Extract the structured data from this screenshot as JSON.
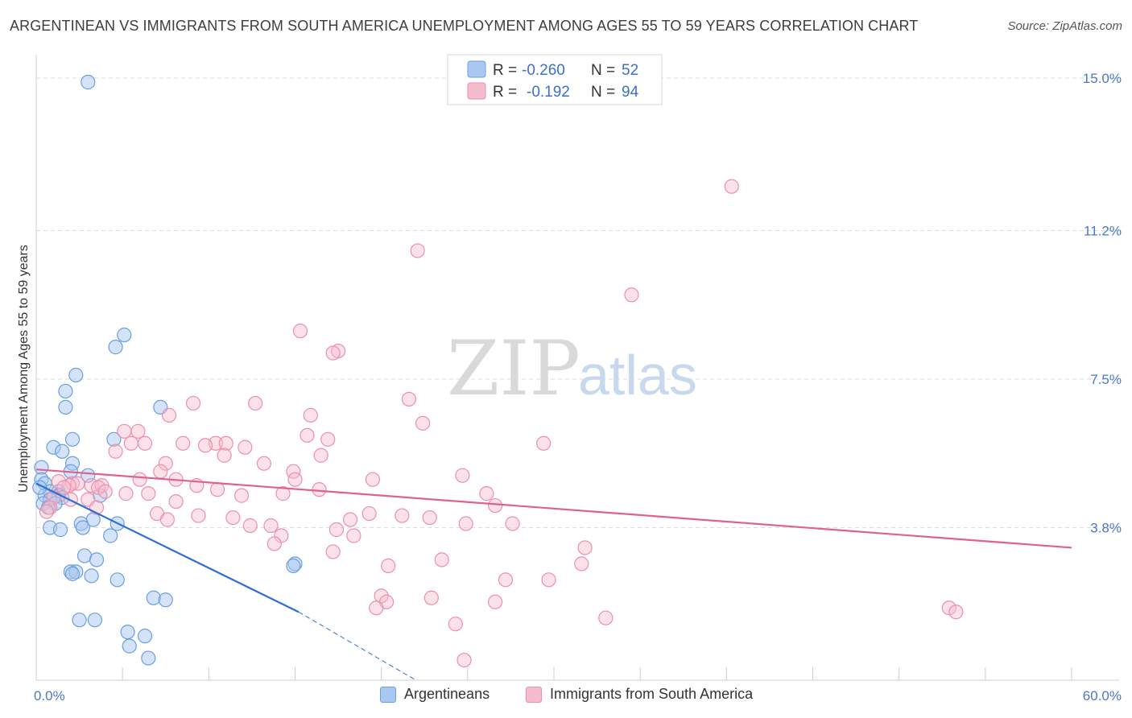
{
  "title": "ARGENTINEAN VS IMMIGRANTS FROM SOUTH AMERICA UNEMPLOYMENT AMONG AGES 55 TO 59 YEARS CORRELATION CHART",
  "source": "Source: ZipAtlas.com",
  "watermark": {
    "zip": "ZIP",
    "atlas": "atlas"
  },
  "colors": {
    "blue_fill": "#a9c7f0",
    "blue_stroke": "#6a9fe0",
    "blue_line": "#2d6fd2",
    "pink_fill": "#f6bccd",
    "pink_stroke": "#ec8fae",
    "pink_line": "#e0628c",
    "tick_text": "#4a78c9",
    "grid": "#dcdcdc"
  },
  "legend": {
    "rows": [
      {
        "r_label": "R =",
        "r_value": "-0.260",
        "n_label": "N =",
        "n_value": "52"
      },
      {
        "r_label": "R =",
        "r_value": "-0.192",
        "n_label": "N =",
        "n_value": "94"
      }
    ]
  },
  "bottom_legend": {
    "series1": "Argentineans",
    "series2": "Immigrants from South America"
  },
  "chart_data": {
    "type": "scatter",
    "title": "ARGENTINEAN VS IMMIGRANTS FROM SOUTH AMERICA UNEMPLOYMENT AMONG AGES 55 TO 59 YEARS CORRELATION CHART",
    "xlabel": "",
    "ylabel": "Unemployment Among Ages 55 to 59 years",
    "xlim": [
      0,
      60
    ],
    "ylim": [
      0,
      15.5
    ],
    "x_tick_labels": [
      "0.0%",
      "60.0%"
    ],
    "y_ticks": [
      3.8,
      7.5,
      11.2,
      15.0
    ],
    "y_tick_labels": [
      "3.8%",
      "7.5%",
      "11.2%",
      "15.0%"
    ],
    "grid": true,
    "series": [
      {
        "name": "Argentineans",
        "r": -0.26,
        "n": 52,
        "trend": {
          "x0": 0,
          "y0": 4.9,
          "x1": 15.2,
          "y1": 1.7,
          "dash_to_x": 22,
          "dash_to_y": 0.0
        },
        "points": [
          [
            3.0,
            14.9
          ],
          [
            5.1,
            8.6
          ],
          [
            4.6,
            8.3
          ],
          [
            2.3,
            7.6
          ],
          [
            1.7,
            7.2
          ],
          [
            1.7,
            6.8
          ],
          [
            7.2,
            6.8
          ],
          [
            2.1,
            6.0
          ],
          [
            4.5,
            6.0
          ],
          [
            1.0,
            5.8
          ],
          [
            1.5,
            5.7
          ],
          [
            2.1,
            5.4
          ],
          [
            0.3,
            5.3
          ],
          [
            2.0,
            5.2
          ],
          [
            3.0,
            5.1
          ],
          [
            0.3,
            5.0
          ],
          [
            0.5,
            4.9
          ],
          [
            0.8,
            4.7
          ],
          [
            1.3,
            4.7
          ],
          [
            0.5,
            4.6
          ],
          [
            1.3,
            4.6
          ],
          [
            1.5,
            4.55
          ],
          [
            0.8,
            4.5
          ],
          [
            3.7,
            4.6
          ],
          [
            1.1,
            4.4
          ],
          [
            0.4,
            4.4
          ],
          [
            0.7,
            4.3
          ],
          [
            3.3,
            4.0
          ],
          [
            2.6,
            3.9
          ],
          [
            4.7,
            3.9
          ],
          [
            0.8,
            3.8
          ],
          [
            2.7,
            3.8
          ],
          [
            1.4,
            3.75
          ],
          [
            4.3,
            3.6
          ],
          [
            2.8,
            3.1
          ],
          [
            3.5,
            3.0
          ],
          [
            2.0,
            2.7
          ],
          [
            2.3,
            2.7
          ],
          [
            2.1,
            2.65
          ],
          [
            3.2,
            2.6
          ],
          [
            15.0,
            2.9
          ],
          [
            14.9,
            2.85
          ],
          [
            4.7,
            2.5
          ],
          [
            6.8,
            2.05
          ],
          [
            7.5,
            2.0
          ],
          [
            2.5,
            1.5
          ],
          [
            3.4,
            1.5
          ],
          [
            5.3,
            1.2
          ],
          [
            6.3,
            1.1
          ],
          [
            5.4,
            0.85
          ],
          [
            6.5,
            0.55
          ],
          [
            0.2,
            4.8
          ]
        ]
      },
      {
        "name": "Immigrants from South America",
        "r": -0.192,
        "n": 94,
        "trend": {
          "x0": 0,
          "y0": 5.25,
          "x1": 60,
          "y1": 3.3
        },
        "points": [
          [
            40.3,
            12.3
          ],
          [
            22.1,
            10.7
          ],
          [
            34.5,
            9.6
          ],
          [
            15.3,
            8.7
          ],
          [
            17.5,
            8.2
          ],
          [
            17.2,
            8.15
          ],
          [
            21.6,
            7.0
          ],
          [
            9.1,
            6.9
          ],
          [
            12.7,
            6.9
          ],
          [
            15.9,
            6.6
          ],
          [
            7.7,
            6.6
          ],
          [
            22.4,
            6.4
          ],
          [
            5.1,
            6.2
          ],
          [
            5.9,
            6.2
          ],
          [
            15.7,
            6.1
          ],
          [
            16.9,
            6.0
          ],
          [
            6.3,
            5.9
          ],
          [
            5.5,
            5.9
          ],
          [
            8.5,
            5.9
          ],
          [
            10.4,
            5.9
          ],
          [
            11.0,
            5.9
          ],
          [
            9.8,
            5.85
          ],
          [
            12.1,
            5.8
          ],
          [
            4.6,
            5.7
          ],
          [
            29.4,
            5.9
          ],
          [
            10.9,
            5.6
          ],
          [
            16.5,
            5.6
          ],
          [
            7.5,
            5.4
          ],
          [
            13.2,
            5.4
          ],
          [
            14.9,
            5.2
          ],
          [
            7.2,
            5.2
          ],
          [
            24.7,
            5.1
          ],
          [
            6.0,
            5.0
          ],
          [
            8.1,
            5.0
          ],
          [
            15.0,
            5.0
          ],
          [
            19.5,
            5.0
          ],
          [
            1.3,
            4.95
          ],
          [
            2.1,
            4.9
          ],
          [
            2.4,
            4.9
          ],
          [
            1.9,
            4.85
          ],
          [
            3.2,
            4.85
          ],
          [
            3.8,
            4.85
          ],
          [
            9.3,
            4.85
          ],
          [
            1.6,
            4.8
          ],
          [
            3.6,
            4.8
          ],
          [
            10.5,
            4.75
          ],
          [
            16.4,
            4.75
          ],
          [
            4.0,
            4.7
          ],
          [
            5.2,
            4.65
          ],
          [
            6.5,
            4.65
          ],
          [
            14.3,
            4.65
          ],
          [
            26.1,
            4.65
          ],
          [
            11.9,
            4.6
          ],
          [
            1.0,
            4.55
          ],
          [
            2.0,
            4.5
          ],
          [
            3.0,
            4.5
          ],
          [
            8.1,
            4.45
          ],
          [
            26.6,
            4.35
          ],
          [
            0.8,
            4.3
          ],
          [
            0.6,
            4.2
          ],
          [
            3.5,
            4.3
          ],
          [
            7.0,
            4.15
          ],
          [
            9.4,
            4.1
          ],
          [
            19.3,
            4.15
          ],
          [
            21.2,
            4.1
          ],
          [
            11.4,
            4.05
          ],
          [
            22.8,
            4.05
          ],
          [
            7.6,
            4.0
          ],
          [
            18.2,
            4.0
          ],
          [
            24.9,
            3.9
          ],
          [
            27.6,
            3.9
          ],
          [
            12.4,
            3.85
          ],
          [
            13.6,
            3.85
          ],
          [
            17.4,
            3.75
          ],
          [
            18.4,
            3.6
          ],
          [
            14.2,
            3.6
          ],
          [
            13.8,
            3.4
          ],
          [
            31.8,
            3.3
          ],
          [
            17.2,
            3.2
          ],
          [
            23.5,
            3.0
          ],
          [
            31.6,
            2.9
          ],
          [
            20.4,
            2.85
          ],
          [
            27.2,
            2.5
          ],
          [
            29.7,
            2.5
          ],
          [
            20.0,
            2.1
          ],
          [
            22.9,
            2.05
          ],
          [
            20.3,
            1.95
          ],
          [
            26.6,
            1.95
          ],
          [
            19.7,
            1.8
          ],
          [
            33.0,
            1.55
          ],
          [
            24.3,
            1.4
          ],
          [
            52.9,
            1.8
          ],
          [
            53.3,
            1.7
          ],
          [
            24.8,
            0.5
          ]
        ]
      }
    ]
  }
}
